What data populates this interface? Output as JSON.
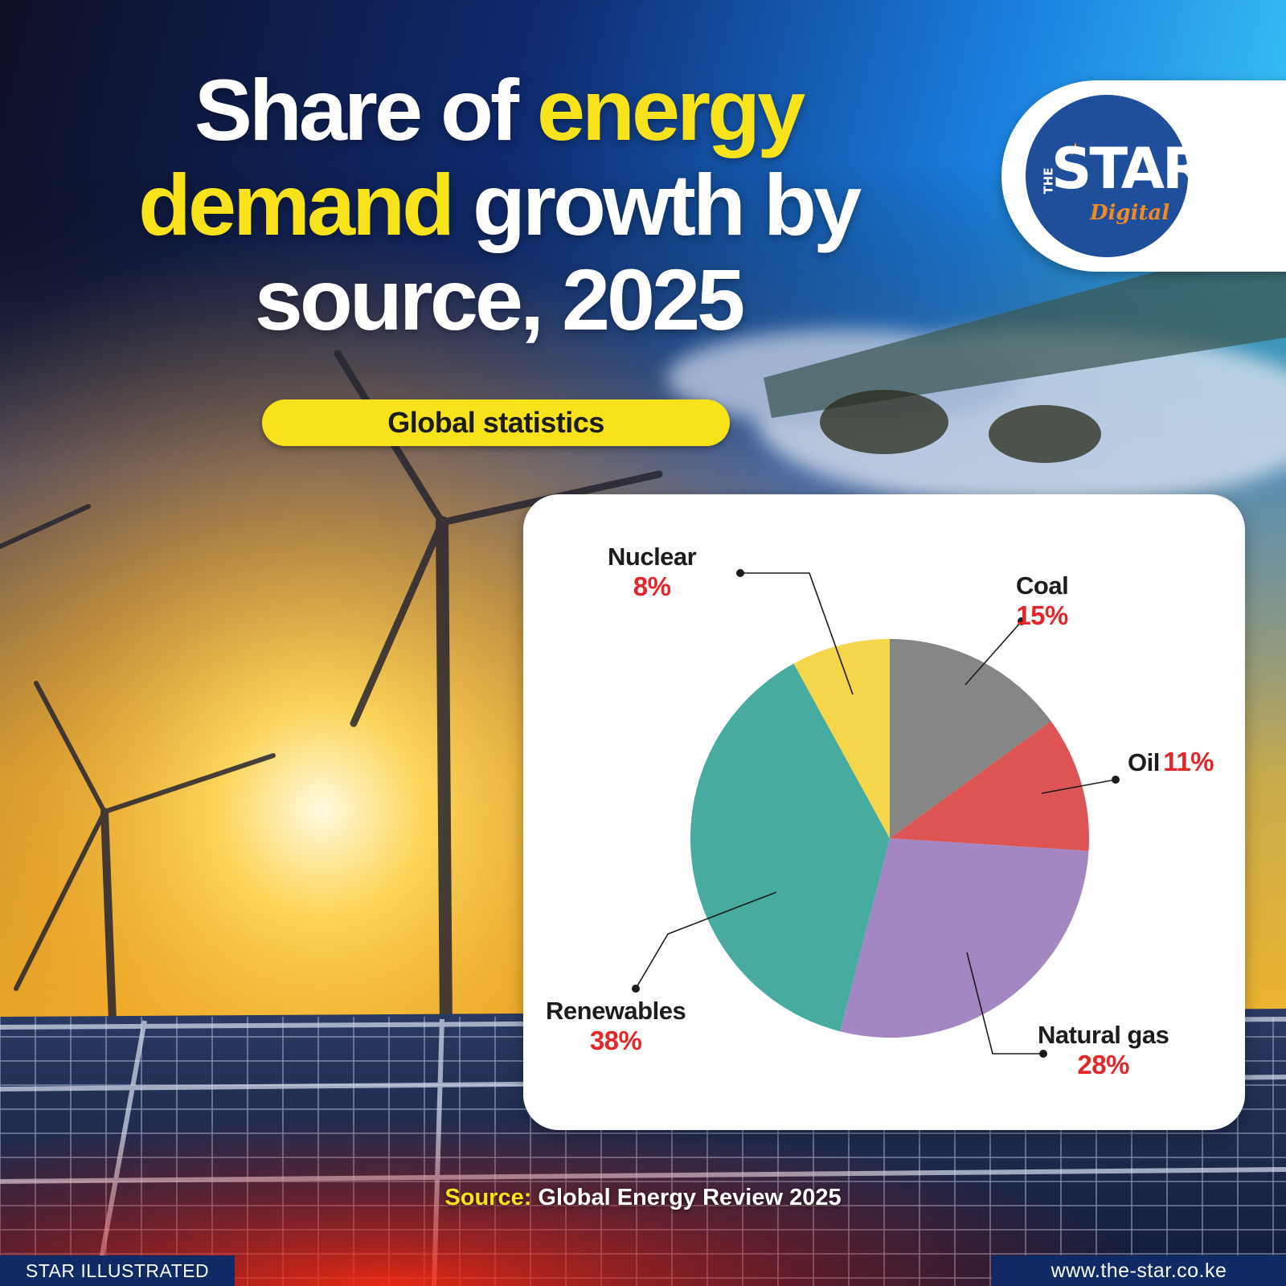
{
  "title": {
    "part1": "Share of ",
    "highlight1": "energy",
    "part2": " ",
    "highlight2": "demand",
    "part3": " growth by source, 2025"
  },
  "subtitle": "Global statistics",
  "logo": {
    "the": "THE",
    "star": "STAR",
    "digital": "Digital"
  },
  "source": {
    "label": "Source:",
    "text": " Global Energy Review 2025"
  },
  "footer": {
    "left": "STAR ILLUSTRATED",
    "right": "www.the-star.co.ke"
  },
  "colors": {
    "headline": "#ffffff",
    "highlight": "#f8e21b",
    "percent": "#e32627",
    "footer_bg": "#102a66",
    "pill": "#f7e21c"
  },
  "chart_data": {
    "type": "pie",
    "slices": [
      {
        "label": "Coal",
        "value": 15,
        "display": "15%",
        "color": "#868686"
      },
      {
        "label": "Oil",
        "value": 11,
        "display": "11%",
        "color": "#dc5453"
      },
      {
        "label": "Natural gas",
        "value": 28,
        "display": "28%",
        "color": "#a386c2"
      },
      {
        "label": "Renewables",
        "value": 38,
        "display": "38%",
        "color": "#48ab9f"
      },
      {
        "label": "Nuclear",
        "value": 8,
        "display": "8%",
        "color": "#f5d54a"
      }
    ],
    "start_angle": "12 o'clock",
    "direction": "clockwise"
  }
}
